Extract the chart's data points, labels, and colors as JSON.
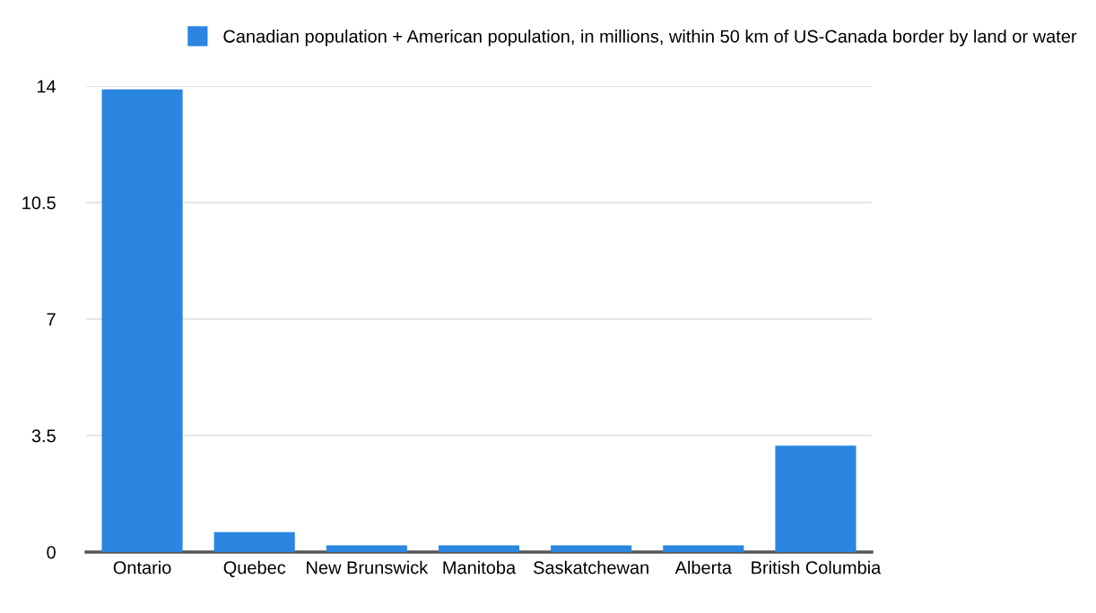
{
  "chart_data": {
    "type": "bar",
    "categories": [
      "Ontario",
      "Quebec",
      "New Brunswick",
      "Manitoba",
      "Saskatchewan",
      "Alberta",
      "British Columbia"
    ],
    "series": [
      {
        "name": "Canadian population + American population, in millions, within 50 km of US-Canada border by land or water",
        "color": "#2a86e0",
        "values": [
          13.9,
          0.6,
          0.2,
          0.2,
          0.2,
          0.2,
          3.2
        ]
      }
    ],
    "ylim": [
      0,
      14
    ],
    "yticks": [
      0,
      3.5,
      7,
      10.5,
      14
    ],
    "grid": "y",
    "legend": "top"
  }
}
